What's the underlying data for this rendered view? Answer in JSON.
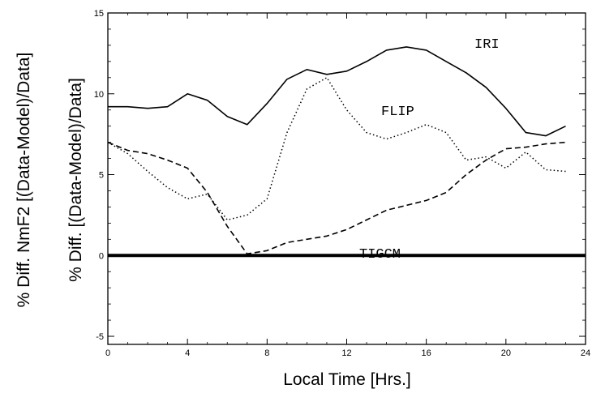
{
  "chart_data": {
    "type": "line",
    "title": "",
    "xlabel": "Local Time [Hrs.]",
    "ylabel_outer": "% Diff. NmF2 [(Data-Model)/Data]",
    "ylabel_inner": "% Diff. [(Data-Model)/Data]",
    "xlim": [
      0,
      24
    ],
    "ylim": [
      -5.5,
      15
    ],
    "xticks": [
      "0",
      "4",
      "8",
      "12",
      "16",
      "20",
      "24"
    ],
    "yticks": [
      "-5",
      "0",
      "5",
      "10",
      "15"
    ],
    "grid": false,
    "series": [
      {
        "name": "IRI",
        "style": "solid",
        "x": [
          0,
          1,
          2,
          3,
          4,
          5,
          6,
          7,
          8,
          9,
          10,
          11,
          12,
          13,
          14,
          15,
          16,
          17,
          18,
          19,
          20,
          21,
          22,
          23
        ],
        "y": [
          9.2,
          9.2,
          9.1,
          9.2,
          10.0,
          9.6,
          8.6,
          8.1,
          9.4,
          10.9,
          11.5,
          11.2,
          11.4,
          12.0,
          12.7,
          12.9,
          12.7,
          12.0,
          11.3,
          10.4,
          9.1,
          7.6,
          7.4,
          8.0
        ],
        "color": "#000000"
      },
      {
        "name": "FLIP",
        "style": "dotted",
        "x": [
          0,
          1,
          2,
          3,
          4,
          5,
          6,
          7,
          8,
          9,
          10,
          11,
          12,
          13,
          14,
          15,
          16,
          17,
          18,
          19,
          20,
          21,
          22,
          23
        ],
        "y": [
          7.0,
          6.3,
          5.2,
          4.2,
          3.5,
          3.8,
          2.2,
          2.5,
          3.5,
          7.6,
          10.3,
          11.0,
          9.0,
          7.6,
          7.2,
          7.6,
          8.1,
          7.6,
          5.9,
          6.1,
          5.4,
          6.4,
          5.3,
          5.2
        ],
        "color": "#000000"
      },
      {
        "name": "",
        "style": "dashed",
        "x": [
          0,
          1,
          2,
          3,
          4,
          5,
          6,
          7,
          8,
          9,
          10,
          11,
          12,
          13,
          14,
          15,
          16,
          17,
          18,
          19,
          20,
          21,
          22,
          23
        ],
        "y": [
          7.0,
          6.5,
          6.3,
          5.9,
          5.4,
          3.9,
          1.8,
          0.1,
          0.3,
          0.8,
          1.0,
          1.2,
          1.6,
          2.2,
          2.8,
          3.1,
          3.4,
          3.9,
          5.0,
          5.9,
          6.6,
          6.7,
          6.9,
          7.0
        ],
        "color": "#000000"
      },
      {
        "name": "TIGCM",
        "style": "solid-thick",
        "x": [
          0,
          24
        ],
        "y": [
          0,
          0
        ],
        "color": "#000000"
      }
    ],
    "labels": {
      "iri": "IRI",
      "flip": "FLIP",
      "tigcm": "TIGCM"
    }
  }
}
